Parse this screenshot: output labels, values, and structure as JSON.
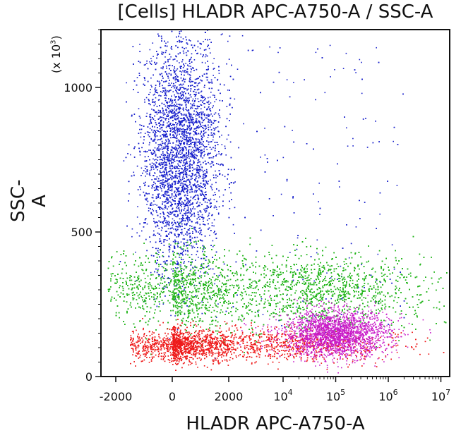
{
  "chart_data": {
    "type": "scatter",
    "title": "[Cells] HLADR APC-A750-A / SSC-A",
    "xlabel": "HLADR APC-A750-A",
    "ylabel": "SSC-A",
    "y_unit_note": "(x 10",
    "y_unit_exp": "3",
    "y_unit_close": ")",
    "x_scale": "biexponential",
    "xlim": [
      -2500,
      10000000
    ],
    "ylim": [
      0,
      1200
    ],
    "x_ticks": [
      {
        "value": -2000,
        "label": "-2000",
        "exp": ""
      },
      {
        "value": 0,
        "label": "0",
        "exp": ""
      },
      {
        "value": 2000,
        "label": "2000",
        "exp": ""
      },
      {
        "value": 10000,
        "label": "10",
        "exp": "4"
      },
      {
        "value": 100000,
        "label": "10",
        "exp": "5"
      },
      {
        "value": 1000000,
        "label": "10",
        "exp": "6"
      },
      {
        "value": 10000000,
        "label": "10",
        "exp": "7"
      }
    ],
    "y_ticks": [
      {
        "value": 0,
        "label": "0"
      },
      {
        "value": 500,
        "label": "500"
      },
      {
        "value": 1000,
        "label": "1000"
      }
    ],
    "populations": [
      {
        "name": "blue population",
        "color": "#1a22cc",
        "x_center": 300,
        "x_spread": 700,
        "y_center": 760,
        "y_spread": 380,
        "count": 7000
      },
      {
        "name": "green population",
        "color": "#22b51a",
        "x_center": 20000,
        "x_spread": 1.3,
        "y_center": 300,
        "y_spread": 65,
        "count": 8000
      },
      {
        "name": "red population",
        "color": "#ee1a1a",
        "x_center": 3000,
        "x_spread": 1.2,
        "y_center": 110,
        "y_spread": 28,
        "count": 3800
      },
      {
        "name": "magenta population",
        "color": "#c81ac8",
        "x_center": 100000,
        "x_spread": 0.5,
        "y_center": 150,
        "y_spread": 40,
        "count": 2200
      }
    ]
  }
}
